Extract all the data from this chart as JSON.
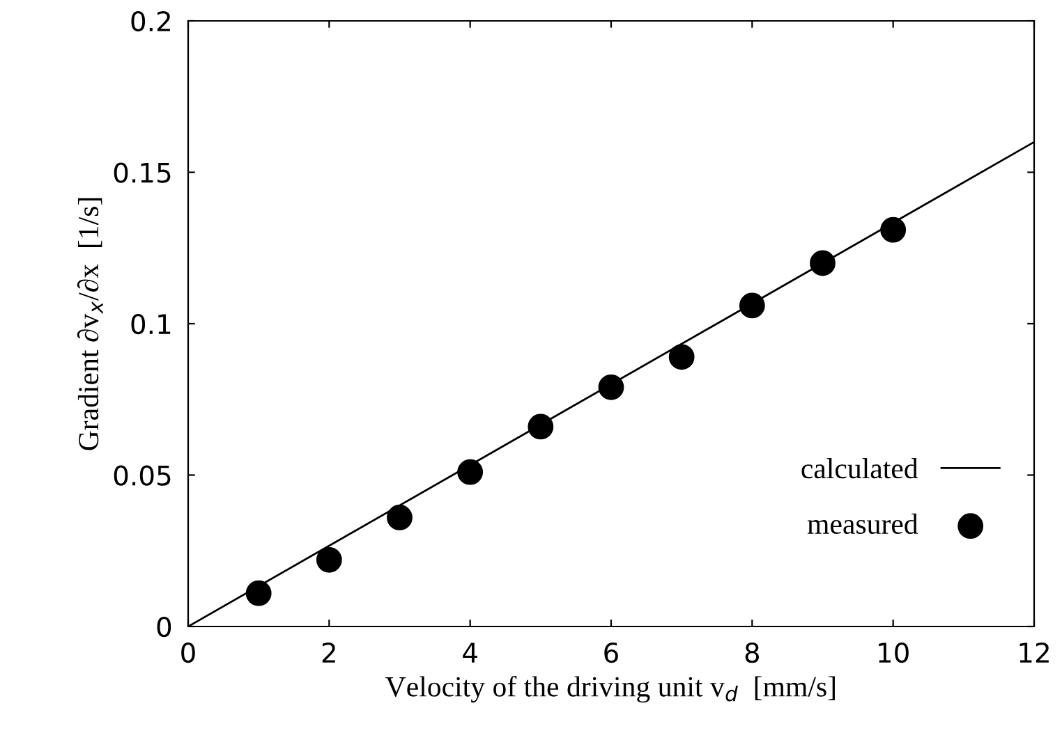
{
  "chart_data": {
    "type": "scatter",
    "xlabel": "Velocity of the driving unit v$_{d}$  [mm/s]",
    "ylabel": "Gradient ∂v$_{x}$/∂x  [1/s]",
    "xlim": [
      0,
      12
    ],
    "ylim": [
      0,
      0.2
    ],
    "xticks": [
      0,
      2,
      4,
      6,
      8,
      10,
      12
    ],
    "yticks": [
      0,
      0.05,
      0.1,
      0.15,
      0.2
    ],
    "grid": false,
    "legend": "bottom right",
    "series": [
      {
        "name": "calculated",
        "type": "line",
        "color": "#000000",
        "x": [
          0,
          12
        ],
        "values": [
          0,
          0.16
        ],
        "marker": "none",
        "line_style": "solid"
      },
      {
        "name": "measured",
        "color": "#000000",
        "x": [
          1,
          2,
          3,
          4,
          5,
          6,
          7,
          8,
          9,
          10
        ],
        "values": [
          0.011,
          0.022,
          0.036,
          0.051,
          0.066,
          0.079,
          0.089,
          0.106,
          0.12,
          0.131
        ],
        "marker": "circle"
      }
    ]
  }
}
